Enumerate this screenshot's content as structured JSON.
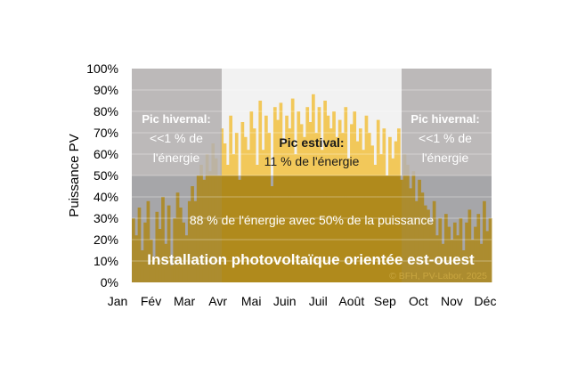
{
  "chart_data": {
    "type": "bar",
    "ylabel": "Puissance PV",
    "ylim": [
      0,
      100
    ],
    "yticks": [
      "0%",
      "10%",
      "20%",
      "30%",
      "40%",
      "50%",
      "60%",
      "70%",
      "80%",
      "90%",
      "100%"
    ],
    "months": [
      "Jan",
      "Fév",
      "Mar",
      "Avr",
      "Mai",
      "Juin",
      "Juil",
      "Août",
      "Sep",
      "Oct",
      "Nov",
      "Déc"
    ],
    "grid": true,
    "threshold_percent": 50,
    "winter_periods_fraction_of_year": [
      [
        0,
        0.25
      ],
      [
        0.75,
        1
      ]
    ],
    "colors": {
      "bar_below_threshold": "#b08a1c",
      "bar_above_threshold_summer": "#f2c85a",
      "winter_overlay": "#b3afaf",
      "lower_background": "#a8a8ab",
      "summer_background": "#f2f2f2"
    },
    "values": [
      30,
      22,
      35,
      15,
      28,
      38,
      20,
      12,
      33,
      25,
      40,
      18,
      36,
      8,
      30,
      42,
      35,
      28,
      22,
      38,
      45,
      38,
      50,
      55,
      48,
      60,
      52,
      65,
      58,
      50,
      72,
      65,
      55,
      78,
      60,
      70,
      48,
      75,
      68,
      62,
      80,
      72,
      55,
      85,
      62,
      78,
      70,
      45,
      82,
      76,
      84,
      65,
      78,
      72,
      86,
      60,
      80,
      74,
      68,
      82,
      75,
      88,
      70,
      82,
      62,
      85,
      78,
      72,
      80,
      68,
      76,
      70,
      82,
      58,
      74,
      80,
      66,
      72,
      62,
      78,
      70,
      64,
      55,
      76,
      60,
      72,
      50,
      68,
      58,
      66,
      72,
      48,
      60,
      55,
      44,
      52,
      38,
      48,
      42,
      36,
      34,
      28,
      38,
      22,
      30,
      18,
      32,
      26,
      20,
      28,
      22,
      30,
      15,
      28,
      34,
      20,
      26,
      32,
      18,
      38,
      24,
      30
    ],
    "annotations": {
      "winter_left": {
        "title": "Pic hivernal:",
        "line1": "<<1 % de",
        "line2": "l'énergie"
      },
      "winter_right": {
        "title": "Pic hivernal:",
        "line1": "<<1 % de",
        "line2": "l'énergie"
      },
      "summer": {
        "title": "Pic estival:",
        "line1": "11 % de l'énergie"
      },
      "base": "88 % de l'énergie avec 50% de la puissance",
      "main": "Installation photovoltaïque orientée est-ouest",
      "copyright": "© BFH, PV-Labor, 2025"
    }
  }
}
